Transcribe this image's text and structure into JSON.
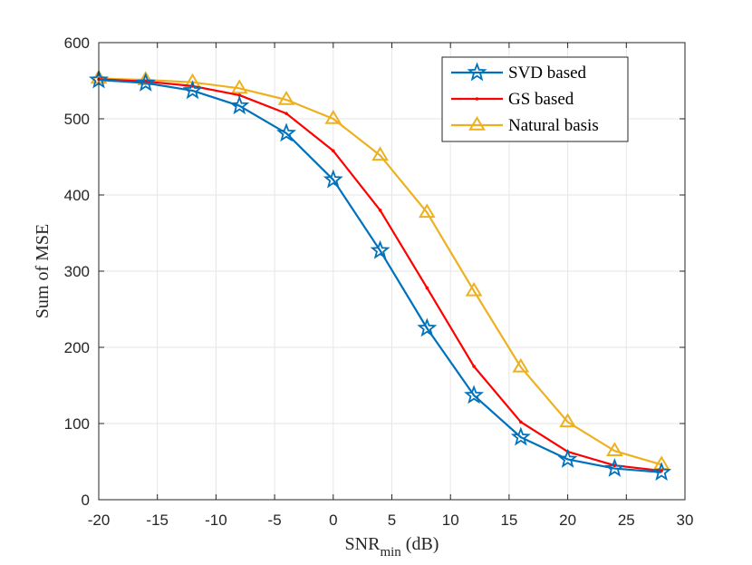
{
  "chart_data": {
    "type": "line",
    "title": "",
    "xlabel": "SNR",
    "xlabel_sub": "min",
    "xlabel_suffix": " (dB)",
    "ylabel": "Sum of MSE",
    "xlim": [
      -20,
      30
    ],
    "ylim": [
      0,
      600
    ],
    "xticks": [
      -20,
      -15,
      -10,
      -5,
      0,
      5,
      10,
      15,
      20,
      25,
      30
    ],
    "yticks": [
      0,
      100,
      200,
      300,
      400,
      500,
      600
    ],
    "grid": true,
    "legend_position": "top-right",
    "x": [
      -20,
      -16,
      -12,
      -8,
      -4,
      0,
      4,
      8,
      12,
      16,
      20,
      24,
      28
    ],
    "series": [
      {
        "name": "SVD based",
        "color": "#0072BD",
        "marker": "star",
        "values": [
          551,
          547,
          537,
          517,
          481,
          420,
          327,
          225,
          137,
          82,
          53,
          41,
          36
        ]
      },
      {
        "name": "GS based",
        "color": "#FF0000",
        "marker": "point",
        "values": [
          552,
          549,
          543,
          531,
          507,
          458,
          380,
          278,
          175,
          102,
          63,
          45,
          38
        ]
      },
      {
        "name": "Natural basis",
        "color": "#EDB120",
        "marker": "triangle",
        "values": [
          553,
          551,
          548,
          540,
          525,
          500,
          452,
          377,
          274,
          174,
          102,
          64,
          46
        ]
      }
    ]
  }
}
